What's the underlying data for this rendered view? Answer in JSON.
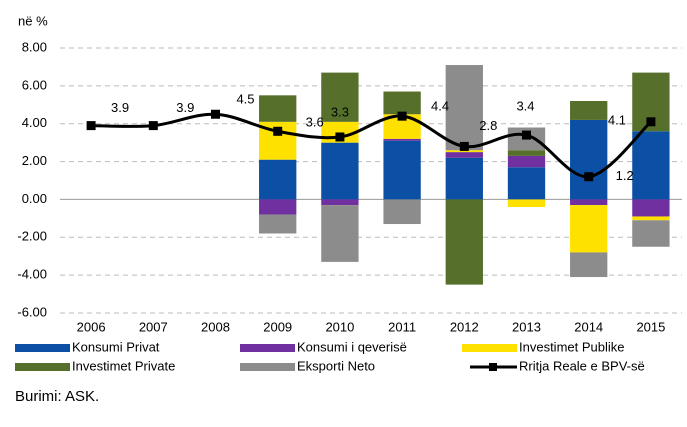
{
  "chart_data": {
    "type": "stacked-bar-line",
    "y_label": "në %",
    "source": "Burimi: ASK.",
    "categories": [
      "2006",
      "2007",
      "2008",
      "2009",
      "2010",
      "2011",
      "2012",
      "2013",
      "2014",
      "2015"
    ],
    "ylim": [
      -6,
      8
    ],
    "yticks": [
      {
        "value": -6,
        "label": "-6.00"
      },
      {
        "value": -4,
        "label": "-4.00"
      },
      {
        "value": -2,
        "label": "-2.00"
      },
      {
        "value": 0,
        "label": "0.00"
      },
      {
        "value": 2,
        "label": "2.00"
      },
      {
        "value": 4,
        "label": "4.00"
      },
      {
        "value": 6,
        "label": "6.00"
      },
      {
        "value": 8,
        "label": "8.00"
      }
    ],
    "grid": true,
    "series": [
      {
        "name": "Konsumi Privat",
        "color": "#0b50a4",
        "values": [
          null,
          null,
          null,
          2.1,
          3.0,
          3.1,
          2.2,
          1.7,
          4.2,
          3.6
        ]
      },
      {
        "name": "Konsumi i qeverisë",
        "color": "#7030a0",
        "values": [
          null,
          null,
          null,
          -0.8,
          -0.3,
          0.1,
          0.3,
          0.6,
          -0.3,
          -0.9
        ]
      },
      {
        "name": "Investimet Publike",
        "color": "#ffe100",
        "values": [
          null,
          null,
          null,
          2.0,
          1.1,
          1.3,
          0.1,
          -0.4,
          -2.5,
          -0.2
        ]
      },
      {
        "name": "Investimet Private",
        "color": "#56702c",
        "values": [
          null,
          null,
          null,
          1.4,
          2.6,
          1.2,
          -4.5,
          0.3,
          1.0,
          3.1
        ]
      },
      {
        "name": "Eksporti Neto",
        "color": "#8c8c8c",
        "values": [
          null,
          null,
          null,
          -1.0,
          -3.0,
          -1.3,
          4.5,
          1.2,
          -1.3,
          -1.4
        ]
      },
      {
        "name": "Rritja Reale e BPV-së",
        "color": "#000000",
        "kind": "line",
        "values": [
          3.9,
          3.9,
          4.5,
          3.6,
          3.3,
          4.4,
          2.8,
          3.4,
          1.2,
          4.1
        ]
      }
    ]
  }
}
